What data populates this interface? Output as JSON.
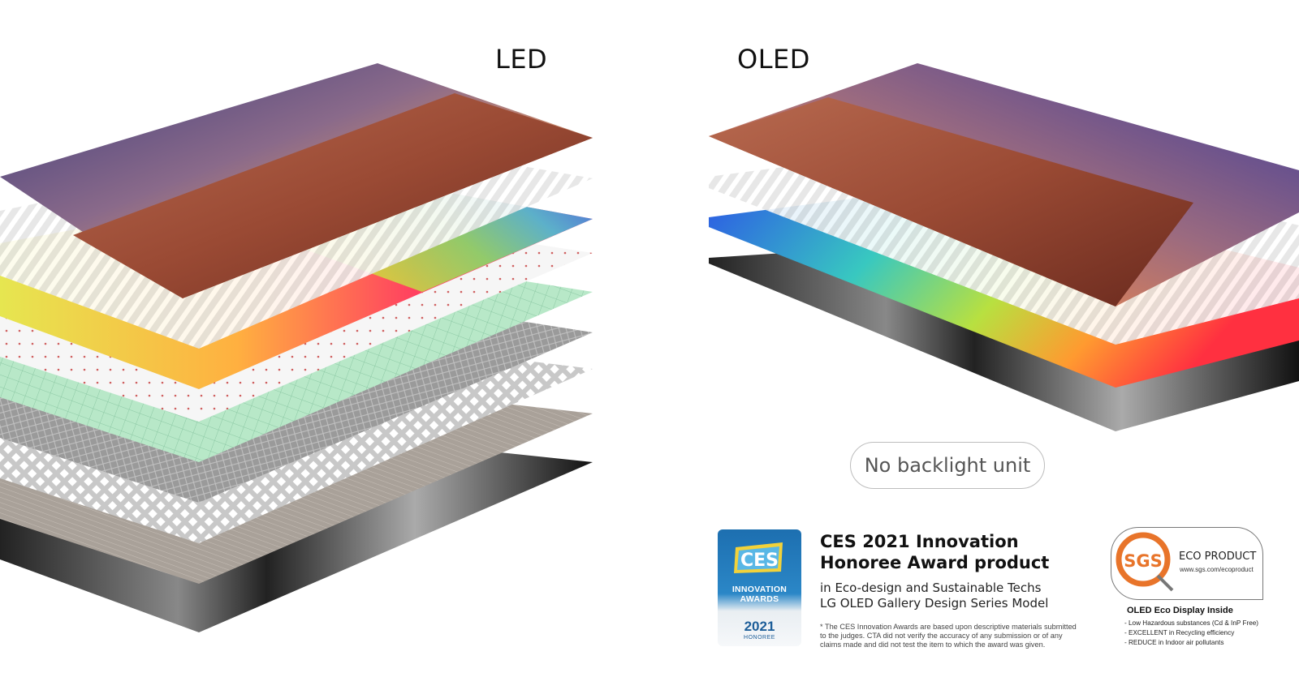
{
  "labels": {
    "led": "LED",
    "oled": "OLED"
  },
  "pill_text": "No backlight unit",
  "ces": {
    "badge_word": "CES",
    "badge_line1": "INNOVATION",
    "badge_line2": "AWARDS",
    "badge_year": "2021",
    "badge_honoree": "HONOREE",
    "title_line1": "CES 2021 Innovation",
    "title_line2": "Honoree Award product",
    "sub_line1": "in Eco-design and Sustainable Techs",
    "sub_line2": "LG OLED Gallery Design Series Model",
    "note_line1": "* The CES Innovation Awards are based upon descriptive materials submitted",
    "note_line2": "to the judges. CTA did not verify the accuracy of any submission or of any",
    "note_line3": "claims made and did not test the item to which the award was given."
  },
  "sgs": {
    "logo_text": "SGS",
    "product": "ECO PRODUCT",
    "url": "www.sgs.com/ecoproduct",
    "eco_title": "OLED Eco Display Inside",
    "eco_items": [
      "- Low Hazardous substances (Cd & InP Free)",
      "- EXCELLENT in Recycling efficiency",
      "- REDUCE in Indoor air pollutants"
    ]
  },
  "colors": {
    "ces_blue": "#1d6fb0",
    "sgs_orange": "#e8742a"
  }
}
